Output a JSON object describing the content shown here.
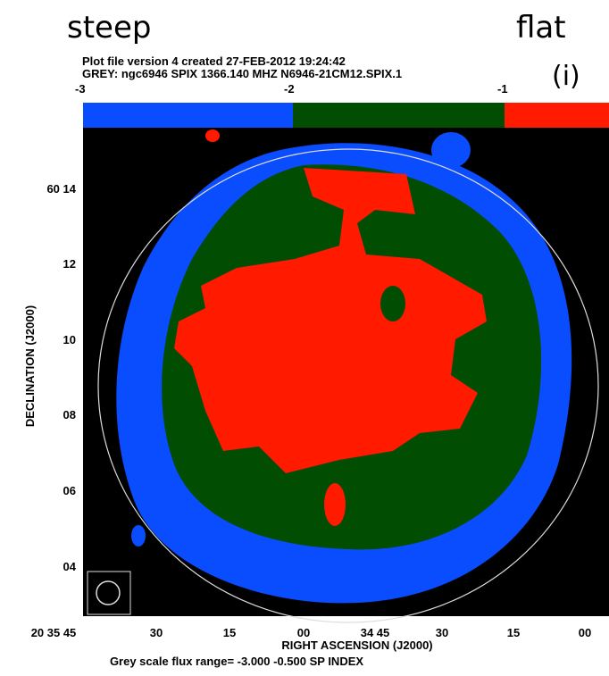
{
  "labels": {
    "left": "steep",
    "right": "flat",
    "panel": "(i)"
  },
  "header": {
    "line1": "Plot file version 4  created 27-FEB-2012 19:24:42",
    "line2": "GREY: ngc6946  SPIX  1366.140 MHZ  N6946-21CM12.SPIX.1"
  },
  "colorbar": {
    "ticks": [
      "-3",
      "-2",
      "-1"
    ]
  },
  "y_axis": {
    "title": "DECLINATION (J2000)",
    "ticks": [
      "60 14",
      "12",
      "10",
      "08",
      "06",
      "04"
    ]
  },
  "x_axis": {
    "title": "RIGHT ASCENSION (J2000)",
    "ticks": [
      "20 35 45",
      "30",
      "15",
      "00",
      "34 45",
      "30",
      "15",
      "00"
    ]
  },
  "footer": "Grey scale flux range= -3.000 -0.500 SP INDEX"
}
